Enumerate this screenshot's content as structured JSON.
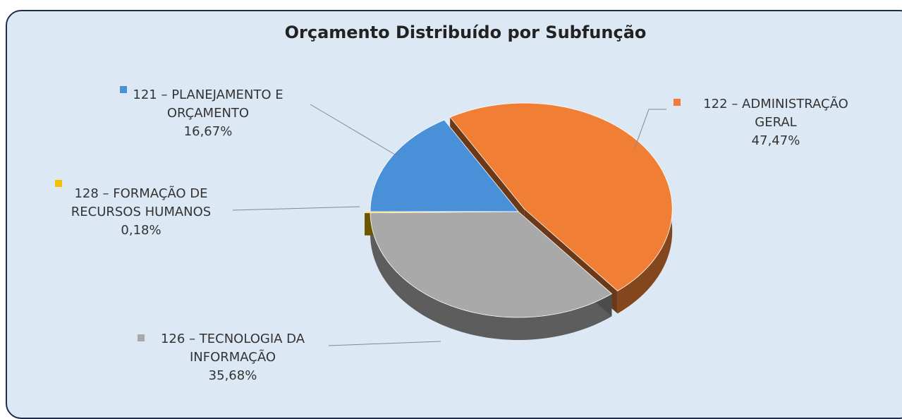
{
  "chart_data": {
    "type": "pie",
    "title": "Orçamento Distribuído por Subfunção",
    "categories": [
      "121 – PLANEJAMENTO E ORÇAMENTO",
      "122 – ADMINISTRAÇÃO GERAL",
      "126 – TECNOLOGIA DA INFORMAÇÃO",
      "128 – FORMAÇÃO DE RECURSOS HUMANOS"
    ],
    "values": [
      16.67,
      47.47,
      35.68,
      0.18
    ],
    "value_labels": [
      "16,67%",
      "47,47%",
      "35,68%",
      "0,18%"
    ],
    "colors": [
      "#4a90d9",
      "#f07f35",
      "#a9a9a9",
      "#f5c000"
    ]
  }
}
